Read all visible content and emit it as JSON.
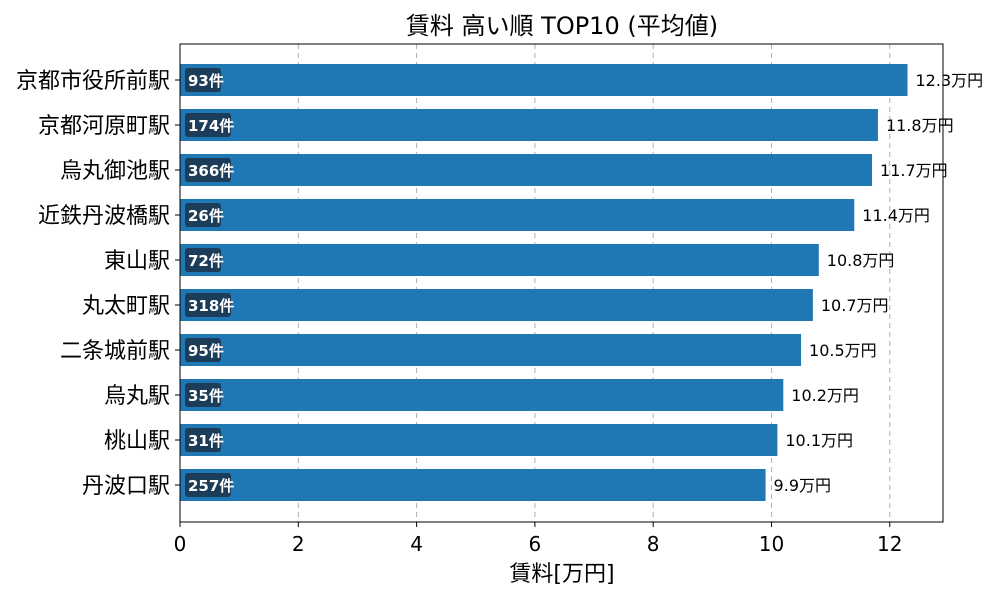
{
  "chart_data": {
    "type": "bar",
    "orientation": "horizontal",
    "title": "賃料 高い順 TOP10 (平均値)",
    "xlabel": "賃料[万円]",
    "ylabel": "",
    "xlim": [
      0,
      12.9
    ],
    "xticks": [
      0,
      2,
      4,
      6,
      8,
      10,
      12
    ],
    "grid": "vertical-dashed",
    "categories": [
      "京都市役所前駅",
      "京都河原町駅",
      "烏丸御池駅",
      "近鉄丹波橋駅",
      "東山駅",
      "丸太町駅",
      "二条城前駅",
      "烏丸駅",
      "桃山駅",
      "丹波口駅"
    ],
    "values": [
      12.3,
      11.8,
      11.7,
      11.4,
      10.8,
      10.7,
      10.5,
      10.2,
      10.1,
      9.9
    ],
    "value_labels": [
      "12.3万円",
      "11.8万円",
      "11.7万円",
      "11.4万円",
      "10.8万円",
      "10.7万円",
      "10.5万円",
      "10.2万円",
      "10.1万円",
      "9.9万円"
    ],
    "counts": [
      93,
      174,
      366,
      26,
      72,
      318,
      95,
      35,
      31,
      257
    ],
    "count_labels": [
      "93件",
      "174件",
      "366件",
      "26件",
      "72件",
      "318件",
      "95件",
      "35件",
      "31件",
      "257件"
    ],
    "colors": {
      "bar": "#1f77b4",
      "count_badge": "#1c3d5a",
      "grid": "#b0b0b0"
    }
  }
}
